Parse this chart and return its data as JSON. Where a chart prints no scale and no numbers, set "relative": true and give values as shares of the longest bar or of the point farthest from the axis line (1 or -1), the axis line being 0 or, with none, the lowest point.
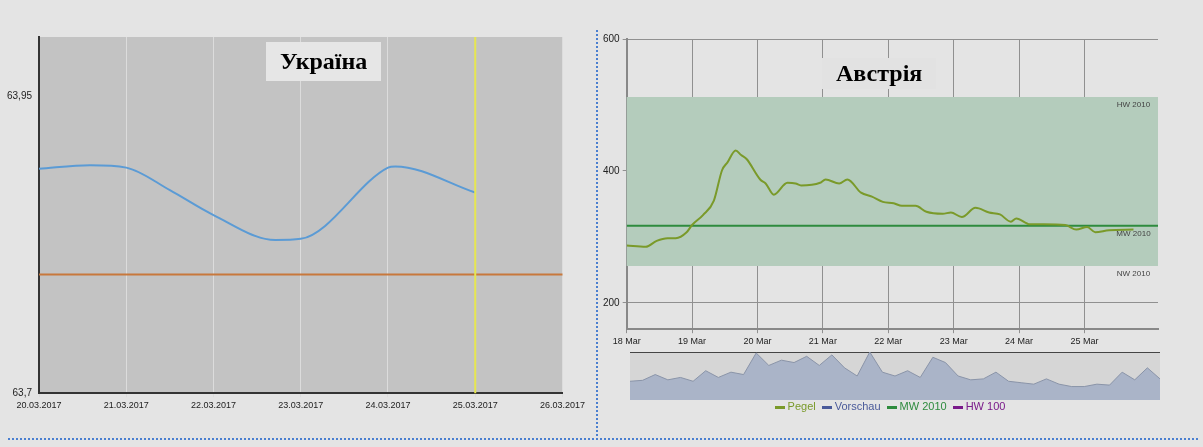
{
  "chart_data": [
    {
      "type": "line",
      "title": "Україна",
      "xlim": [
        "2017-03-20",
        "2017-03-26"
      ],
      "ylim": [
        63.7,
        64.0
      ],
      "xticks": [
        {
          "value": "2017-03-20",
          "label": "20.03.2017"
        },
        {
          "value": "2017-03-21",
          "label": "21.03.2017"
        },
        {
          "value": "2017-03-22",
          "label": "22.03.2017"
        },
        {
          "value": "2017-03-23",
          "label": "23.03.2017"
        },
        {
          "value": "2017-03-24",
          "label": "24.03.2017"
        },
        {
          "value": "2017-03-25",
          "label": "25.03.2017"
        },
        {
          "value": "2017-03-26",
          "label": "26.03.2017"
        }
      ],
      "yticks": [
        {
          "value": 63.95,
          "label": "63,95"
        },
        {
          "value": 63.7,
          "label": "63,7"
        }
      ],
      "grid": "x",
      "legend": false,
      "marker": "none",
      "series": [
        {
          "color": "#5b9bd5",
          "x": [
            "2017-03-20T00:00",
            "2017-03-20T14:00",
            "2017-03-21T00:00",
            "2017-03-21T12:00",
            "2017-03-22T00:00",
            "2017-03-22T17:00",
            "2017-03-23T00:00",
            "2017-03-24T00:00",
            "2017-03-24T02:00",
            "2017-03-25T00:00"
          ],
          "values": [
            63.889,
            63.892,
            63.89,
            63.871,
            63.85,
            63.829,
            63.83,
            63.89,
            63.891,
            63.869
          ]
        }
      ],
      "ref_lines": [
        {
          "axis": "y",
          "value": 63.8,
          "color": "#c8783c"
        },
        {
          "axis": "x",
          "value": "2017-03-25",
          "color": "#e6e650"
        }
      ]
    },
    {
      "type": "line",
      "title": "Австрія",
      "xlim": [
        "2017-03-18",
        "2017-03-26T03:00"
      ],
      "ylim": [
        160,
        600
      ],
      "xticks": [
        {
          "value": "2017-03-18",
          "label": "18 Mar"
        },
        {
          "value": "2017-03-19",
          "label": "19 Mar"
        },
        {
          "value": "2017-03-20",
          "label": "20 Mar"
        },
        {
          "value": "2017-03-21",
          "label": "21 Mar"
        },
        {
          "value": "2017-03-22",
          "label": "22 Mar"
        },
        {
          "value": "2017-03-23",
          "label": "23 Mar"
        },
        {
          "value": "2017-03-24",
          "label": "24 Mar"
        },
        {
          "value": "2017-03-25",
          "label": "25 Mar"
        }
      ],
      "yticks": [
        200,
        400,
        600
      ],
      "grid": true,
      "legend": "bottom",
      "marker": "none",
      "series": [
        {
          "name": "Pegel",
          "color": "#7a9a2a",
          "x": [
            "2017-03-18T00:00",
            "2017-03-18T07:00",
            "2017-03-18T11:00",
            "2017-03-18T15:00",
            "2017-03-18T18:00",
            "2017-03-18T22:00",
            "2017-03-19T00:00",
            "2017-03-19T04:00",
            "2017-03-19T08:00",
            "2017-03-19T11:00",
            "2017-03-19T13:00",
            "2017-03-19T16:00",
            "2017-03-19T18:00",
            "2017-03-19T20:00",
            "2017-03-20T01:00",
            "2017-03-20T03:00",
            "2017-03-20T06:00",
            "2017-03-20T11:00",
            "2017-03-20T14:00",
            "2017-03-20T16:00",
            "2017-03-20T23:00",
            "2017-03-21T01:00",
            "2017-03-21T06:00",
            "2017-03-21T09:00",
            "2017-03-21T14:00",
            "2017-03-21T18:00",
            "2017-03-21T22:00",
            "2017-03-22T02:00",
            "2017-03-22T05:00",
            "2017-03-22T10:00",
            "2017-03-22T14:00",
            "2017-03-22T20:00",
            "2017-03-22T23:00",
            "2017-03-23T03:00",
            "2017-03-23T08:00",
            "2017-03-23T13:00",
            "2017-03-23T17:00",
            "2017-03-23T21:00",
            "2017-03-23T23:00",
            "2017-03-24T04:00",
            "2017-03-24T09:00",
            "2017-03-24T17:00",
            "2017-03-24T21:00",
            "2017-03-25T01:00",
            "2017-03-25T04:00",
            "2017-03-25T09:00",
            "2017-03-25T18:00"
          ],
          "values": [
            287,
            285,
            294,
            298,
            298,
            307,
            318,
            333,
            355,
            401,
            413,
            431,
            424,
            418,
            387,
            381,
            364,
            382,
            381,
            378,
            382,
            387,
            381,
            387,
            367,
            361,
            353,
            351,
            347,
            347,
            338,
            335,
            337,
            330,
            344,
            337,
            334,
            323,
            328,
            319,
            319,
            318,
            311,
            315,
            307,
            310,
            311
          ]
        },
        {
          "name": "Vorschau",
          "color": "#4a5a9a"
        },
        {
          "name": "MW 2010",
          "color": "#2e8b3e",
          "x": [
            "2017-03-18",
            "2017-03-26T03:00"
          ],
          "values": [
            317,
            317
          ]
        },
        {
          "name": "HW 100",
          "color": "#7a1a8a"
        }
      ],
      "bands": [
        {
          "axis": "y",
          "from": 256,
          "to": 512,
          "color": "#b4ccbc"
        }
      ],
      "annotations": [
        {
          "text": "HW 2010",
          "x": "2017-03-25T18:00",
          "y": 512
        },
        {
          "text": "MW 2010",
          "x": "2017-03-25T18:00",
          "y": 317
        },
        {
          "text": "NW 2010",
          "x": "2017-03-25T18:00",
          "y": 256
        }
      ]
    },
    {
      "type": "area",
      "relative": true,
      "color": "#aab4c8",
      "categories": [
        null,
        null,
        null,
        null,
        null,
        null,
        null,
        null,
        null,
        null,
        null,
        null,
        null,
        null,
        null,
        null,
        null,
        null,
        null,
        null,
        null,
        null,
        null,
        null,
        null,
        null,
        null,
        null,
        null,
        null,
        null,
        null,
        null,
        null,
        null,
        null,
        null,
        null,
        null,
        null,
        null,
        null,
        null
      ],
      "values": [
        0.39,
        0.41,
        0.53,
        0.42,
        0.47,
        0.39,
        0.61,
        0.47,
        0.58,
        0.53,
        0.98,
        0.72,
        0.83,
        0.78,
        0.91,
        0.72,
        0.94,
        0.67,
        0.5,
        1,
        0.58,
        0.5,
        0.61,
        0.47,
        0.89,
        0.78,
        0.5,
        0.42,
        0.44,
        0.58,
        0.39,
        0.36,
        0.33,
        0.44,
        0.33,
        0.28,
        0.28,
        0.33,
        0.31,
        0.58,
        0.42,
        0.67,
        0.44
      ]
    }
  ]
}
